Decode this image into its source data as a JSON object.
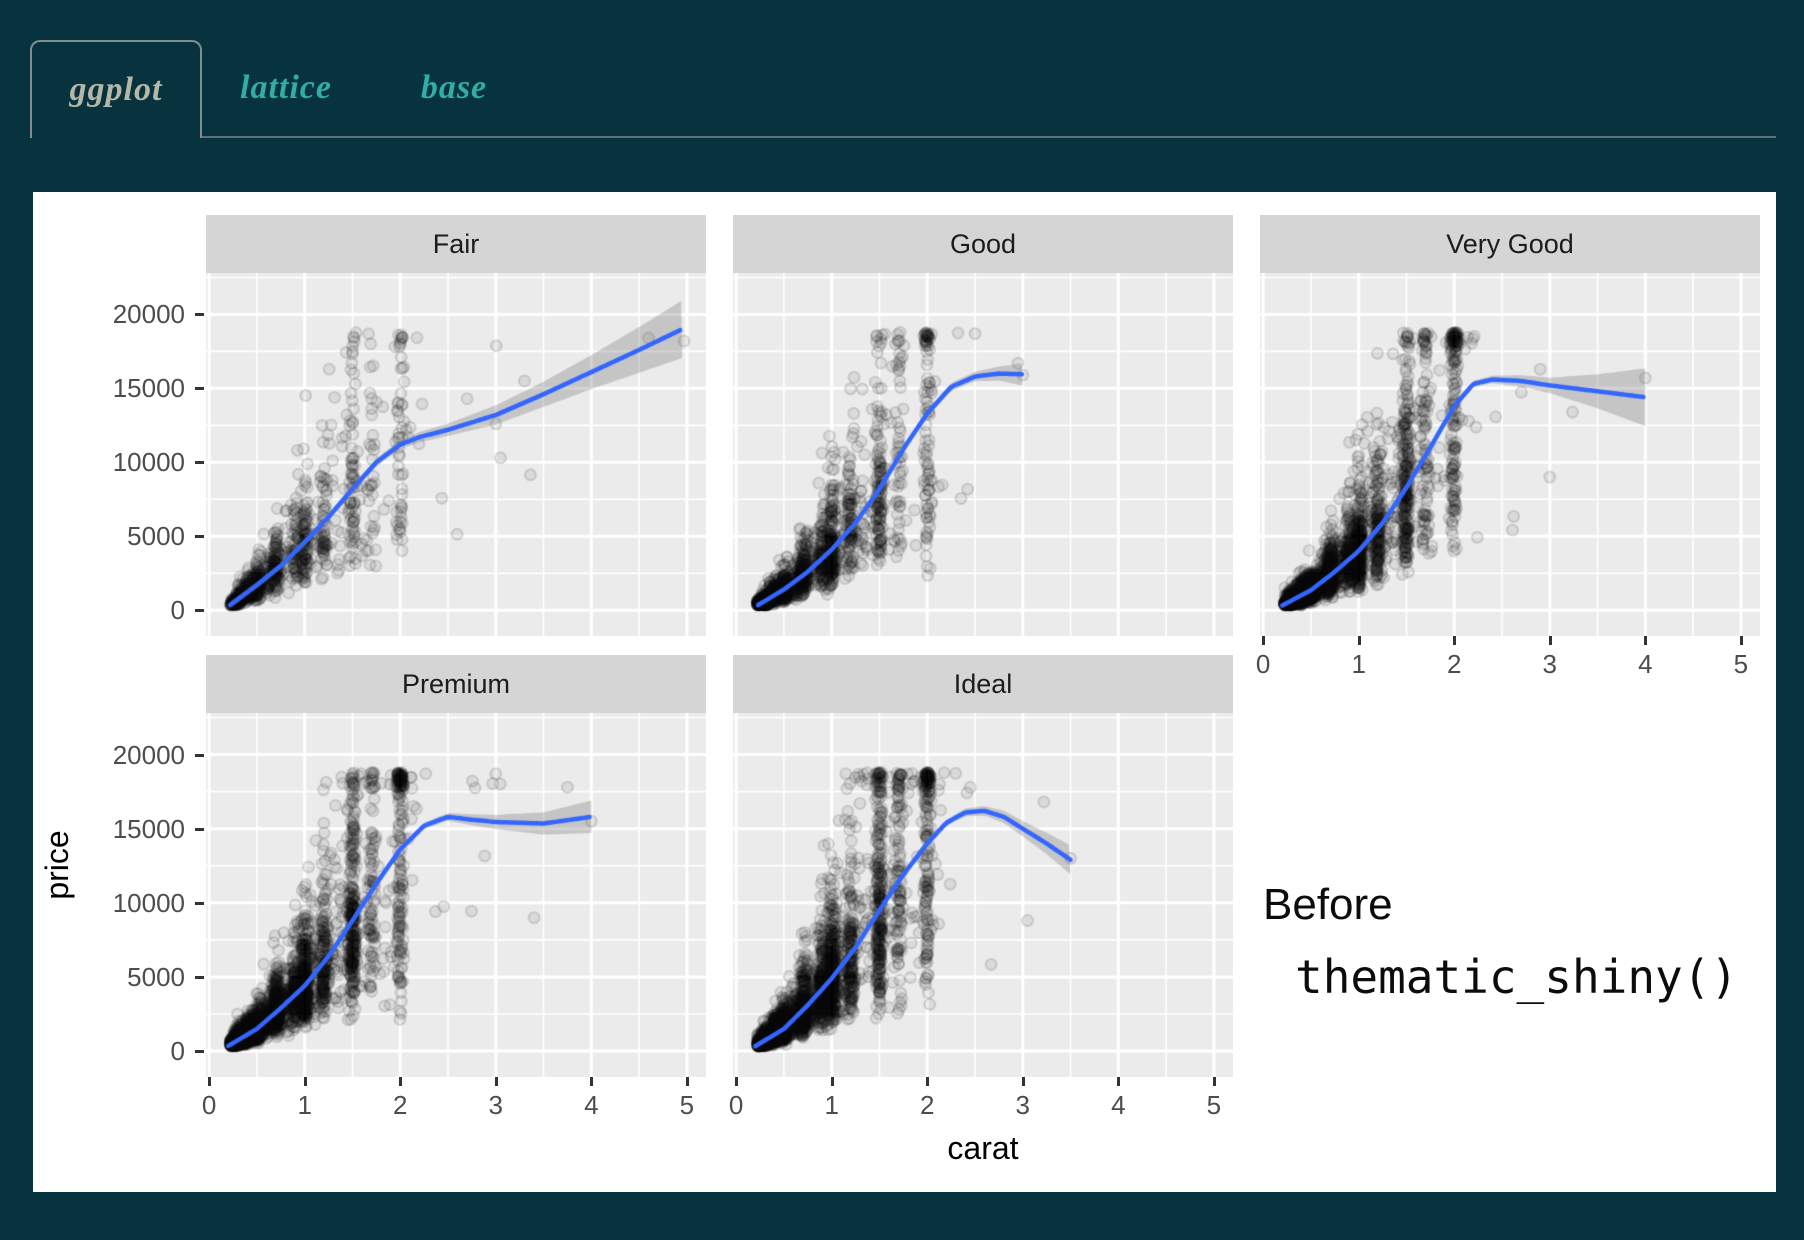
{
  "app": {
    "background": "#07333f",
    "card_background": "#ffffff",
    "tab_underline_color": "#5c7177",
    "tab_active_border": "#828f8d",
    "tab_active_color": "#b6b7a7",
    "tab_inactive_color": "#2fada6",
    "tabs": [
      {
        "label": "ggplot",
        "active": true
      },
      {
        "label": "lattice",
        "active": false
      },
      {
        "label": "base",
        "active": false
      }
    ]
  },
  "annotation": {
    "line1": "Before",
    "line2": "thematic_shiny()"
  },
  "chart_data": {
    "type": "scatter",
    "title": "",
    "xlabel": "carat",
    "ylabel": "price",
    "facet_variable": "cut",
    "grid": "on",
    "legend": "none",
    "x_ticks": [
      0,
      1,
      2,
      3,
      4,
      5
    ],
    "y_ticks": [
      0,
      5000,
      10000,
      15000,
      20000
    ],
    "x_minor_ticks": [
      0.5,
      1.5,
      2.5,
      3.5,
      4.5
    ],
    "y_minor_ticks": [
      2500,
      7500,
      12500,
      17500,
      22500
    ],
    "xlim": [
      -0.033,
      5.2
    ],
    "ylim": [
      -1745,
      22800
    ],
    "price_range": [
      340,
      18800
    ],
    "panel_bg": "#ebebeb",
    "strip_bg": "#d5d5d5",
    "grid_color": "#ffffff",
    "axis_text_color": "#4d4d4d",
    "tick_color": "#333333",
    "smooth_color": "#3366FF",
    "ribbon_color": "rgba(110,110,110,0.30)",
    "point_stroke": "rgba(0,0,0,0.13)",
    "point_fill": "rgba(0,0,0,0.07)",
    "carat_streaks": [
      0.3,
      0.4,
      0.5,
      0.7,
      0.9,
      1.0,
      1.2,
      1.5,
      1.7,
      2.0
    ],
    "streak_weights": [
      9,
      8,
      8,
      8,
      5,
      9,
      5,
      8,
      3,
      6
    ],
    "facets": [
      {
        "label": "Fair",
        "row": 0,
        "col": 0,
        "n_points": 1000,
        "carat_max": 5.0,
        "seed": 11,
        "smooth": [
          [
            0.22,
            350
          ],
          [
            0.5,
            1700
          ],
          [
            0.75,
            3000
          ],
          [
            1.0,
            4600
          ],
          [
            1.25,
            6300
          ],
          [
            1.5,
            8200
          ],
          [
            1.75,
            10000
          ],
          [
            2.0,
            11200
          ],
          [
            2.2,
            11700
          ],
          [
            2.5,
            12200
          ],
          [
            3.0,
            13200
          ],
          [
            3.5,
            14600
          ],
          [
            4.0,
            16100
          ],
          [
            4.5,
            17600
          ],
          [
            4.95,
            19000
          ]
        ],
        "ci": [
          [
            0.22,
            250
          ],
          [
            1.0,
            220
          ],
          [
            2.0,
            300
          ],
          [
            2.2,
            350
          ],
          [
            2.5,
            420
          ],
          [
            3.0,
            650
          ],
          [
            3.5,
            850
          ],
          [
            4.0,
            1150
          ],
          [
            4.5,
            1550
          ],
          [
            4.95,
            1950
          ]
        ],
        "outliers": [
          [
            2.7,
            14300
          ],
          [
            3.0,
            12600
          ],
          [
            3.05,
            10300
          ],
          [
            3.3,
            15500
          ],
          [
            4.6,
            18400
          ],
          [
            4.97,
            18200
          ]
        ]
      },
      {
        "label": "Good",
        "row": 0,
        "col": 1,
        "n_points": 1900,
        "carat_max": 3.04,
        "seed": 22,
        "smooth": [
          [
            0.23,
            350
          ],
          [
            0.5,
            1400
          ],
          [
            0.75,
            2600
          ],
          [
            1.0,
            4100
          ],
          [
            1.25,
            5900
          ],
          [
            1.5,
            8200
          ],
          [
            1.75,
            10900
          ],
          [
            2.0,
            13300
          ],
          [
            2.25,
            15100
          ],
          [
            2.5,
            15800
          ],
          [
            2.75,
            16000
          ],
          [
            3.0,
            15950
          ]
        ],
        "ci": [
          [
            0.23,
            150
          ],
          [
            2.0,
            220
          ],
          [
            2.5,
            320
          ],
          [
            2.75,
            480
          ],
          [
            3.0,
            750
          ]
        ],
        "outliers": [
          [
            3.0,
            15900
          ],
          [
            2.95,
            16700
          ],
          [
            2.5,
            18700
          ]
        ]
      },
      {
        "label": "Very Good",
        "row": 0,
        "col": 2,
        "n_points": 3200,
        "carat_max": 4.0,
        "seed": 33,
        "smooth": [
          [
            0.2,
            320
          ],
          [
            0.5,
            1350
          ],
          [
            0.75,
            2600
          ],
          [
            1.0,
            4000
          ],
          [
            1.25,
            5900
          ],
          [
            1.5,
            8300
          ],
          [
            1.75,
            11000
          ],
          [
            2.0,
            13800
          ],
          [
            2.2,
            15300
          ],
          [
            2.4,
            15600
          ],
          [
            2.7,
            15500
          ],
          [
            3.0,
            15200
          ],
          [
            3.5,
            14800
          ],
          [
            4.0,
            14400
          ]
        ],
        "ci": [
          [
            0.2,
            120
          ],
          [
            2.0,
            160
          ],
          [
            2.4,
            260
          ],
          [
            3.0,
            520
          ],
          [
            3.5,
            1150
          ],
          [
            4.0,
            1950
          ]
        ],
        "outliers": [
          [
            4.0,
            15700
          ],
          [
            3.0,
            9000
          ],
          [
            2.9,
            16300
          ]
        ]
      },
      {
        "label": "Premium",
        "row": 1,
        "col": 0,
        "n_points": 3400,
        "carat_max": 4.01,
        "seed": 44,
        "smooth": [
          [
            0.2,
            350
          ],
          [
            0.5,
            1500
          ],
          [
            0.75,
            2900
          ],
          [
            1.0,
            4400
          ],
          [
            1.25,
            6400
          ],
          [
            1.5,
            8800
          ],
          [
            1.75,
            11300
          ],
          [
            2.0,
            13600
          ],
          [
            2.25,
            15200
          ],
          [
            2.5,
            15800
          ],
          [
            2.75,
            15600
          ],
          [
            3.0,
            15450
          ],
          [
            3.5,
            15350
          ],
          [
            4.0,
            15800
          ]
        ],
        "ci": [
          [
            0.2,
            120
          ],
          [
            2.0,
            160
          ],
          [
            2.5,
            260
          ],
          [
            3.0,
            480
          ],
          [
            3.5,
            750
          ],
          [
            4.0,
            1100
          ]
        ],
        "outliers": [
          [
            4.0,
            15500
          ],
          [
            3.75,
            17800
          ],
          [
            3.0,
            18700
          ],
          [
            3.4,
            9000
          ]
        ]
      },
      {
        "label": "Ideal",
        "row": 1,
        "col": 1,
        "n_points": 3600,
        "carat_max": 3.5,
        "seed": 55,
        "smooth": [
          [
            0.2,
            330
          ],
          [
            0.5,
            1500
          ],
          [
            0.75,
            3100
          ],
          [
            1.0,
            4900
          ],
          [
            1.25,
            7000
          ],
          [
            1.5,
            9500
          ],
          [
            1.75,
            11900
          ],
          [
            2.0,
            14000
          ],
          [
            2.2,
            15400
          ],
          [
            2.4,
            16100
          ],
          [
            2.6,
            16200
          ],
          [
            2.8,
            15800
          ],
          [
            3.0,
            15000
          ],
          [
            3.25,
            14000
          ],
          [
            3.5,
            12900
          ]
        ],
        "ci": [
          [
            0.2,
            120
          ],
          [
            2.2,
            210
          ],
          [
            2.6,
            320
          ],
          [
            3.0,
            520
          ],
          [
            3.25,
            720
          ],
          [
            3.5,
            980
          ]
        ],
        "outliers": [
          [
            3.22,
            16800
          ],
          [
            3.5,
            13000
          ],
          [
            3.05,
            8800
          ]
        ]
      }
    ]
  }
}
